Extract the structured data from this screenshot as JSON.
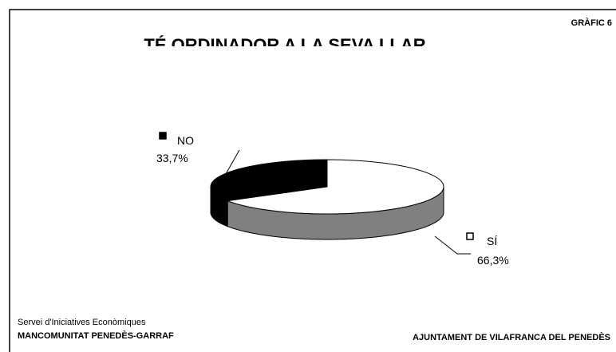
{
  "chart_data": {
    "type": "pie3d",
    "title": "TÉ ORDINADOR A LA SEVA LLAR",
    "annotation": "GRÀFIC 6",
    "categories": [
      "NO",
      "SÍ"
    ],
    "values": [
      33.7,
      66.3
    ],
    "value_labels": [
      "33,7%",
      "66,3%"
    ],
    "colors": [
      "#000000",
      "#ffffff"
    ],
    "side_colors": [
      "#000000",
      "#808080"
    ],
    "footer_left": [
      "Servei d'Iniciatives Econòmiques",
      "MANCOMUNITAT PENEDÈS-GARRAF"
    ],
    "footer_right": "AJUNTAMENT DE VILAFRANCA DEL PENEDÈS"
  }
}
